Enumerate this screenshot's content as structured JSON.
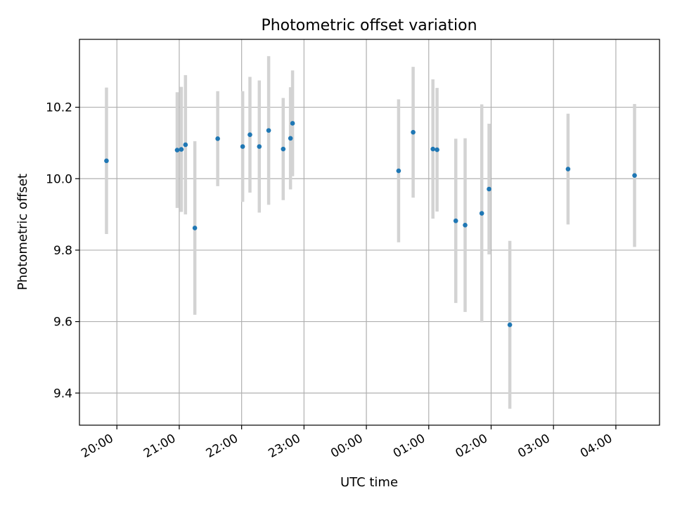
{
  "chart_data": {
    "type": "scatter",
    "title": "Photometric offset variation",
    "xlabel": "UTC time",
    "ylabel": "Photometric offset",
    "x_tick_labels": [
      "20:00",
      "21:00",
      "22:00",
      "23:00",
      "00:00",
      "01:00",
      "02:00",
      "03:00",
      "04:00"
    ],
    "x_ticks_hours": [
      20,
      21,
      22,
      23,
      24,
      25,
      26,
      27,
      28
    ],
    "xlim_hours": [
      19.4,
      28.7
    ],
    "y_ticks": [
      9.4,
      9.6,
      9.8,
      10.0,
      10.2
    ],
    "y_tick_labels": [
      "9.4",
      "9.6",
      "9.8",
      "10.0",
      "10.2"
    ],
    "ylim": [
      9.31,
      10.39
    ],
    "grid": true,
    "point_color": "#1f77b4",
    "errorbar_color": "#d3d3d3",
    "points": [
      {
        "t": "19:50",
        "y": 10.05,
        "err": 0.205
      },
      {
        "t": "20:58",
        "y": 10.08,
        "err": 0.162
      },
      {
        "t": "21:02",
        "y": 10.082,
        "err": 0.175
      },
      {
        "t": "21:06",
        "y": 10.095,
        "err": 0.195
      },
      {
        "t": "21:15",
        "y": 9.862,
        "err": 0.243
      },
      {
        "t": "21:37",
        "y": 10.112,
        "err": 0.133
      },
      {
        "t": "22:01",
        "y": 10.09,
        "err": 0.155
      },
      {
        "t": "22:08",
        "y": 10.123,
        "err": 0.162
      },
      {
        "t": "22:17",
        "y": 10.09,
        "err": 0.185
      },
      {
        "t": "22:26",
        "y": 10.135,
        "err": 0.208
      },
      {
        "t": "22:40",
        "y": 10.083,
        "err": 0.143
      },
      {
        "t": "22:47",
        "y": 10.113,
        "err": 0.143
      },
      {
        "t": "22:49",
        "y": 10.155,
        "err": 0.148
      },
      {
        "t": "00:31",
        "y": 10.022,
        "err": 0.2
      },
      {
        "t": "00:45",
        "y": 10.13,
        "err": 0.183
      },
      {
        "t": "01:04",
        "y": 10.083,
        "err": 0.195
      },
      {
        "t": "01:08",
        "y": 10.081,
        "err": 0.173
      },
      {
        "t": "01:26",
        "y": 9.882,
        "err": 0.23
      },
      {
        "t": "01:35",
        "y": 9.87,
        "err": 0.243
      },
      {
        "t": "01:51",
        "y": 9.903,
        "err": 0.305
      },
      {
        "t": "01:58",
        "y": 9.971,
        "err": 0.183
      },
      {
        "t": "02:18",
        "y": 9.591,
        "err": 0.235
      },
      {
        "t": "03:14",
        "y": 10.027,
        "err": 0.155
      },
      {
        "t": "04:18",
        "y": 10.009,
        "err": 0.2
      }
    ]
  }
}
